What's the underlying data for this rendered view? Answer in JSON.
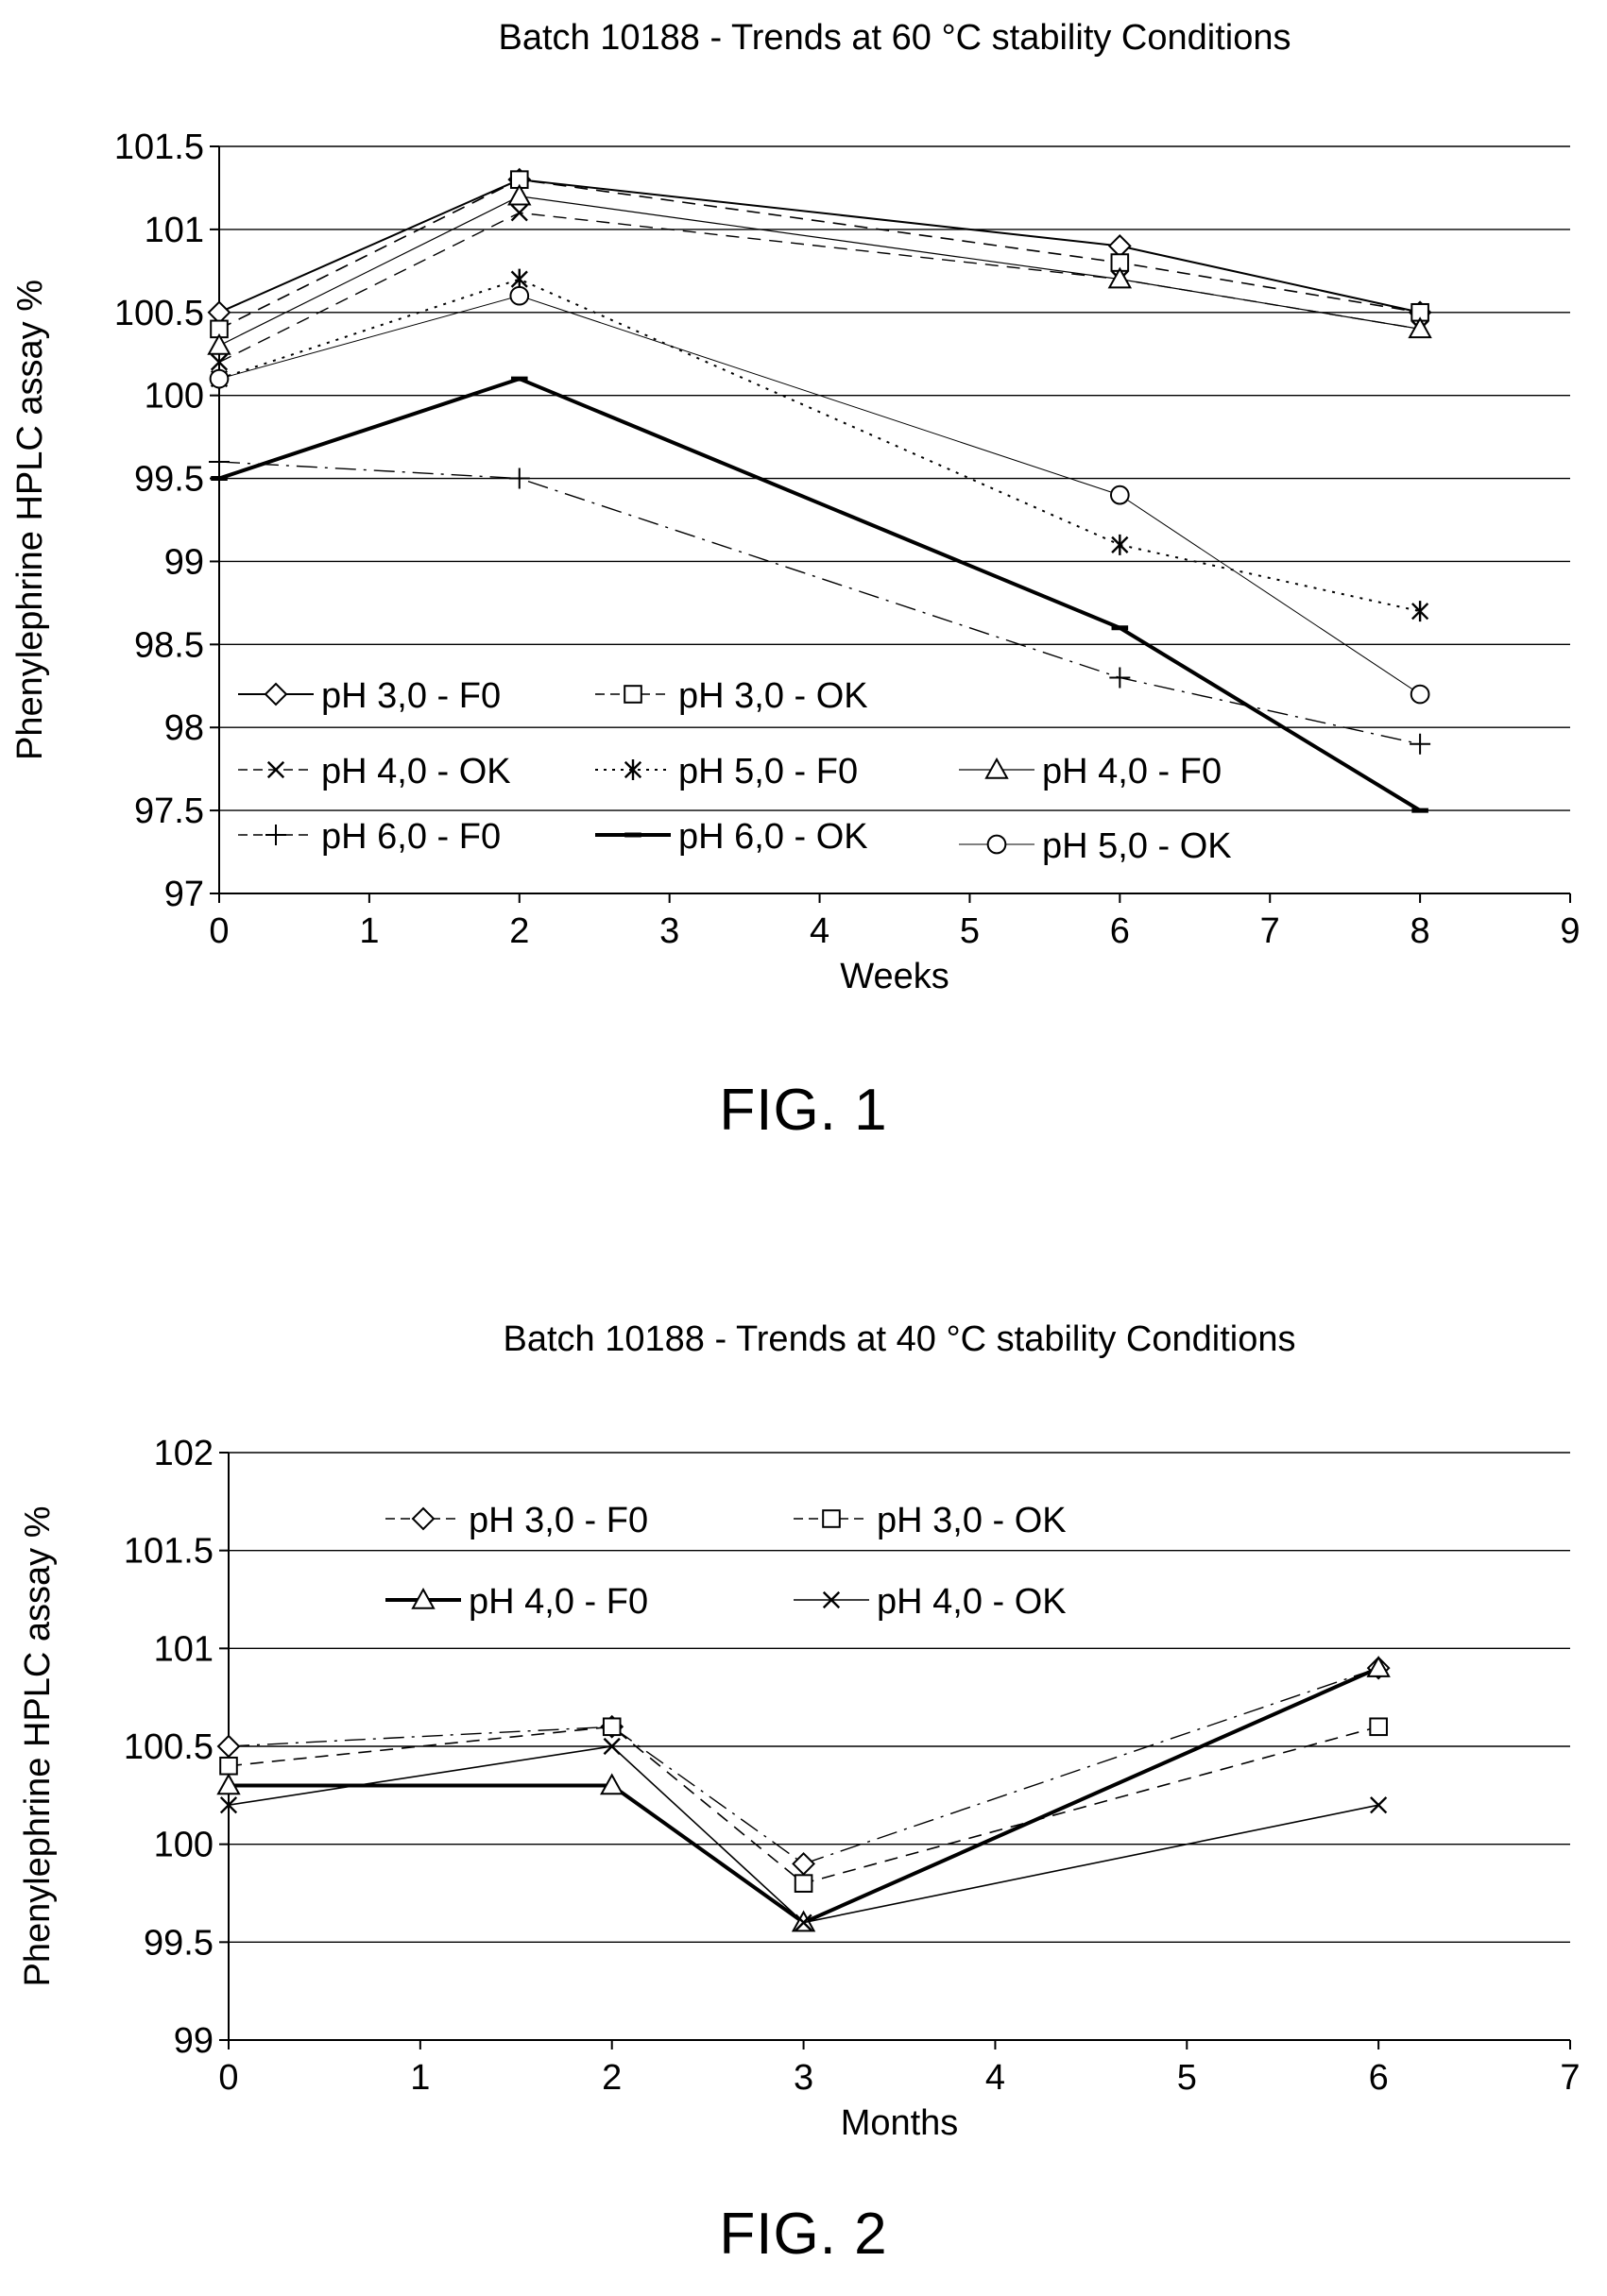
{
  "chart_data": [
    {
      "type": "line",
      "title": "Batch 10188 - Trends at 60 °C stability Conditions",
      "xlabel": "Weeks",
      "ylabel": "Phenylephrine HPLC assay %",
      "xlim": [
        0,
        9
      ],
      "ylim": [
        97,
        101.5
      ],
      "x_ticks": [
        "0",
        "1",
        "2",
        "3",
        "4",
        "5",
        "6",
        "7",
        "8",
        "9"
      ],
      "y_ticks": [
        "97",
        "97.5",
        "98",
        "98.5",
        "99",
        "99.5",
        "100",
        "100.5",
        "101",
        "101.5"
      ],
      "grid": "horizontal",
      "legend_placement": "inside-lower-left",
      "x": [
        0,
        2,
        6,
        8
      ],
      "series": [
        {
          "name": "pH 3,0 - F0",
          "values": [
            100.5,
            101.3,
            100.9,
            100.5
          ],
          "marker": "diamond",
          "line": "solid",
          "width": 2
        },
        {
          "name": "pH 3,0 - OK",
          "values": [
            100.4,
            101.3,
            100.8,
            100.5
          ],
          "marker": "square",
          "line": "dashed",
          "width": 1.6
        },
        {
          "name": "pH 4,0 - OK",
          "values": [
            100.2,
            101.1,
            100.7,
            100.4
          ],
          "marker": "x",
          "line": "dashed",
          "width": 1.4
        },
        {
          "name": "pH 5,0 - F0",
          "values": [
            100.1,
            100.7,
            99.1,
            98.7
          ],
          "marker": "star",
          "line": "dotted",
          "width": 2
        },
        {
          "name": "pH 4,0 - F0",
          "values": [
            100.3,
            101.2,
            100.7,
            100.4
          ],
          "marker": "triangle",
          "line": "solid",
          "width": 1.2
        },
        {
          "name": "pH 6,0 - F0",
          "values": [
            99.6,
            99.5,
            98.3,
            97.9
          ],
          "marker": "plus",
          "line": "dashdot",
          "width": 1.4
        },
        {
          "name": "pH 6,0 - OK",
          "values": [
            99.5,
            100.1,
            98.6,
            97.5
          ],
          "marker": "dash",
          "line": "solid",
          "width": 4
        },
        {
          "name": "pH 5,0 - OK",
          "values": [
            100.1,
            100.6,
            99.4,
            98.2
          ],
          "marker": "circle",
          "line": "solid",
          "width": 1
        }
      ],
      "caption": "FIG. 1"
    },
    {
      "type": "line",
      "title": "Batch 10188 - Trends at 40 °C stability Conditions",
      "xlabel": "Months",
      "ylabel": "Phenylephrine HPLC assay %",
      "xlim": [
        0,
        7
      ],
      "ylim": [
        99,
        102
      ],
      "x_ticks": [
        "0",
        "1",
        "2",
        "3",
        "4",
        "5",
        "6",
        "7"
      ],
      "y_ticks": [
        "99",
        "99.5",
        "100",
        "100.5",
        "101",
        "101.5",
        "102"
      ],
      "grid": "horizontal",
      "legend_placement": "inside-top-left",
      "x": [
        0,
        2,
        3,
        6
      ],
      "series": [
        {
          "name": "pH 3,0 - F0",
          "values": [
            100.5,
            100.6,
            99.9,
            100.9
          ],
          "marker": "diamond",
          "line": "dashdot",
          "width": 1.4
        },
        {
          "name": "pH 3,0 - OK",
          "values": [
            100.4,
            100.6,
            99.8,
            100.6
          ],
          "marker": "square",
          "line": "dashed",
          "width": 1.6
        },
        {
          "name": "pH 4,0 - F0",
          "values": [
            100.3,
            100.3,
            99.6,
            100.9
          ],
          "marker": "triangle",
          "line": "solid",
          "width": 4
        },
        {
          "name": "pH 4,0 - OK",
          "values": [
            100.2,
            100.5,
            99.6,
            100.2
          ],
          "marker": "x",
          "line": "solid",
          "width": 1.6
        }
      ],
      "caption": "FIG. 2"
    }
  ]
}
